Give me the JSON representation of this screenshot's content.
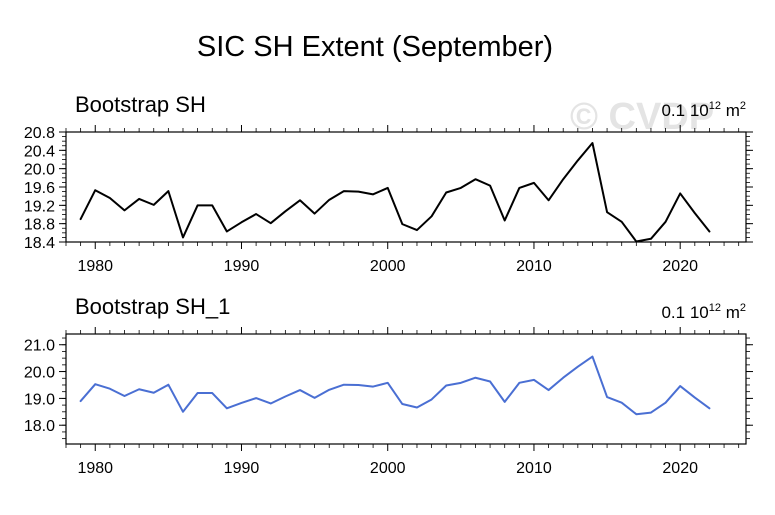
{
  "chart_data": {
    "title": "SIC SH Extent (September)",
    "watermark": "© CVDP",
    "x": [
      1979,
      1980,
      1981,
      1982,
      1983,
      1984,
      1985,
      1986,
      1987,
      1988,
      1989,
      1990,
      1991,
      1992,
      1993,
      1994,
      1995,
      1996,
      1997,
      1998,
      1999,
      2000,
      2001,
      2002,
      2003,
      2004,
      2005,
      2006,
      2007,
      2008,
      2009,
      2010,
      2011,
      2012,
      2013,
      2014,
      2015,
      2016,
      2017,
      2018,
      2019,
      2020,
      2021,
      2022
    ],
    "panels": [
      {
        "type": "line",
        "title": "Bootstrap SH",
        "units": {
          "prefix": "0.1 10",
          "exp": "12",
          "suffix": " m",
          "suffix_exp": "2"
        },
        "color": "#000000",
        "ylim": [
          18.4,
          20.8
        ],
        "yticks": [
          18.4,
          18.8,
          19.2,
          19.6,
          20.0,
          20.4,
          20.8
        ],
        "ytick_labels": [
          "18.4",
          "18.8",
          "19.2",
          "19.6",
          "20.0",
          "20.4",
          "20.8"
        ],
        "values": [
          18.9,
          19.53,
          19.36,
          19.09,
          19.34,
          19.21,
          19.51,
          18.5,
          19.2,
          19.2,
          18.63,
          18.83,
          19.01,
          18.81,
          19.07,
          19.31,
          19.02,
          19.32,
          19.51,
          19.5,
          19.44,
          19.58,
          18.79,
          18.66,
          18.96,
          19.48,
          19.58,
          19.77,
          19.63,
          18.87,
          19.58,
          19.69,
          19.31,
          19.77,
          20.18,
          20.56,
          19.05,
          18.84,
          18.41,
          18.47,
          18.84,
          19.46,
          19.03,
          18.63
        ]
      },
      {
        "type": "line",
        "title": "Bootstrap SH_1",
        "units": {
          "prefix": "0.1 10",
          "exp": "12",
          "suffix": " m",
          "suffix_exp": "2"
        },
        "color": "#4a6fd3",
        "ylim": [
          17.3,
          21.4
        ],
        "yticks": [
          18.0,
          19.0,
          20.0,
          21.0
        ],
        "ytick_labels": [
          "18.0",
          "19.0",
          "20.0",
          "21.0"
        ],
        "values": [
          18.9,
          19.53,
          19.36,
          19.09,
          19.34,
          19.21,
          19.51,
          18.5,
          19.2,
          19.2,
          18.63,
          18.83,
          19.01,
          18.81,
          19.07,
          19.31,
          19.02,
          19.32,
          19.51,
          19.5,
          19.44,
          19.58,
          18.79,
          18.66,
          18.96,
          19.48,
          19.58,
          19.77,
          19.63,
          18.87,
          19.58,
          19.69,
          19.31,
          19.77,
          20.18,
          20.56,
          19.05,
          18.84,
          18.41,
          18.47,
          18.84,
          19.46,
          19.03,
          18.63
        ]
      }
    ],
    "xlim": [
      1978,
      2024.5
    ],
    "xticks": [
      1980,
      1990,
      2000,
      2010,
      2020
    ],
    "xtick_labels": [
      "1980",
      "1990",
      "2000",
      "2010",
      "2020"
    ]
  }
}
